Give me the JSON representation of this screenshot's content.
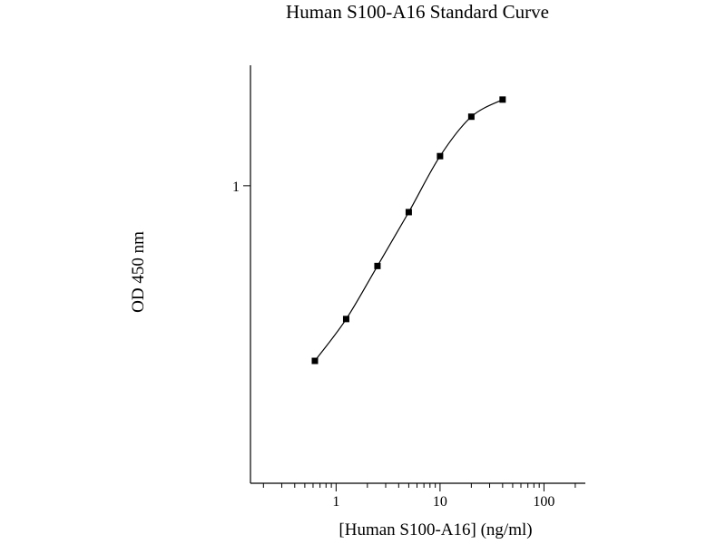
{
  "chart_data": {
    "type": "scatter",
    "title": "Human S100-A16 Standard Curve",
    "xlabel": "[Human S100-A16] (ng/ml)",
    "ylabel": "OD 450 nm",
    "x_scale": "log",
    "y_scale": "log",
    "xlim": [
      0.15,
      250
    ],
    "ylim": [
      0.16,
      2.1
    ],
    "x_ticks": [
      {
        "value": 1,
        "label": "1"
      },
      {
        "value": 10,
        "label": "10"
      },
      {
        "value": 100,
        "label": "100"
      }
    ],
    "y_ticks": [
      {
        "value": 1,
        "label": "1"
      }
    ],
    "grid": false,
    "legend": "none",
    "series": [
      {
        "x": [
          0.625,
          1.25,
          2.5,
          5,
          10,
          20,
          40
        ],
        "y": [
          0.34,
          0.44,
          0.61,
          0.85,
          1.2,
          1.53,
          1.7
        ],
        "marker": "square",
        "fit_curve": true
      }
    ],
    "colors": {
      "line": "#000000",
      "marker": "#000000"
    }
  }
}
